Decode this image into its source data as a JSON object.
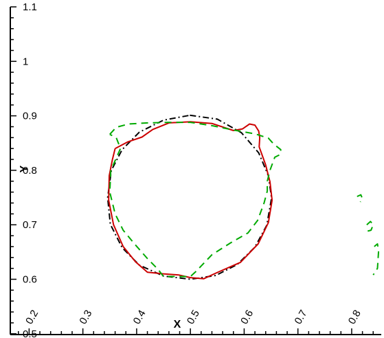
{
  "chart_data": {
    "type": "line",
    "xlabel": "X",
    "ylabel": "Y",
    "xlim": [
      0.165,
      0.855
    ],
    "ylim": [
      0.4985,
      1.1
    ],
    "grid": false,
    "legend": "none",
    "x_ticks": [
      "0.2",
      "0.3",
      "0.4",
      "0.5",
      "0.6",
      "0.7",
      "0.8"
    ],
    "y_ticks": [
      "0.5",
      "0.6",
      "0.7",
      "0.8",
      "0.9",
      "1",
      "1.1"
    ],
    "series": [
      {
        "style": "dash-dot",
        "color": "#000000",
        "points": [
          [
            0.499,
            0.901
          ],
          [
            0.55,
            0.894
          ],
          [
            0.595,
            0.869
          ],
          [
            0.627,
            0.832
          ],
          [
            0.645,
            0.79
          ],
          [
            0.651,
            0.749
          ],
          [
            0.642,
            0.699
          ],
          [
            0.62,
            0.659
          ],
          [
            0.587,
            0.627
          ],
          [
            0.547,
            0.607
          ],
          [
            0.5,
            0.6
          ],
          [
            0.45,
            0.606
          ],
          [
            0.405,
            0.626
          ],
          [
            0.373,
            0.658
          ],
          [
            0.351,
            0.701
          ],
          [
            0.346,
            0.75
          ],
          [
            0.353,
            0.8
          ],
          [
            0.373,
            0.838
          ],
          [
            0.405,
            0.87
          ],
          [
            0.45,
            0.892
          ],
          [
            0.499,
            0.901
          ]
        ]
      },
      {
        "style": "solid",
        "color": "#cc0000",
        "points": [
          [
            0.36,
            0.84
          ],
          [
            0.383,
            0.852
          ],
          [
            0.41,
            0.861
          ],
          [
            0.43,
            0.875
          ],
          [
            0.46,
            0.887
          ],
          [
            0.5,
            0.889
          ],
          [
            0.54,
            0.886
          ],
          [
            0.58,
            0.873
          ],
          [
            0.597,
            0.876
          ],
          [
            0.61,
            0.885
          ],
          [
            0.62,
            0.883
          ],
          [
            0.627,
            0.872
          ],
          [
            0.629,
            0.86
          ],
          [
            0.628,
            0.843
          ],
          [
            0.64,
            0.81
          ],
          [
            0.648,
            0.779
          ],
          [
            0.652,
            0.745
          ],
          [
            0.645,
            0.704
          ],
          [
            0.626,
            0.665
          ],
          [
            0.593,
            0.631
          ],
          [
            0.549,
            0.612
          ],
          [
            0.525,
            0.601
          ],
          [
            0.5,
            0.603
          ],
          [
            0.478,
            0.608
          ],
          [
            0.45,
            0.61
          ],
          [
            0.42,
            0.613
          ],
          [
            0.398,
            0.632
          ],
          [
            0.375,
            0.66
          ],
          [
            0.357,
            0.7
          ],
          [
            0.348,
            0.745
          ],
          [
            0.349,
            0.79
          ],
          [
            0.355,
            0.82
          ],
          [
            0.36,
            0.84
          ]
        ]
      },
      {
        "style": "dash",
        "color": "#00aa00",
        "points": [
          [
            0.35,
            0.866
          ],
          [
            0.362,
            0.879
          ],
          [
            0.385,
            0.885
          ],
          [
            0.42,
            0.887
          ],
          [
            0.46,
            0.888
          ],
          [
            0.5,
            0.888
          ],
          [
            0.54,
            0.882
          ],
          [
            0.58,
            0.874
          ],
          [
            0.62,
            0.867
          ],
          [
            0.645,
            0.859
          ],
          [
            0.655,
            0.848
          ],
          [
            0.668,
            0.838
          ],
          [
            0.667,
            0.829
          ],
          [
            0.657,
            0.824
          ],
          [
            0.648,
            0.8
          ],
          [
            0.643,
            0.78
          ],
          [
            0.643,
            0.762
          ],
          [
            0.637,
            0.74
          ],
          [
            0.625,
            0.708
          ],
          [
            0.607,
            0.685
          ],
          [
            0.575,
            0.667
          ],
          [
            0.54,
            0.645
          ],
          [
            0.51,
            0.614
          ],
          [
            0.5,
            0.605
          ],
          [
            0.45,
            0.605
          ],
          [
            0.44,
            0.618
          ],
          [
            0.42,
            0.638
          ],
          [
            0.396,
            0.665
          ],
          [
            0.375,
            0.69
          ],
          [
            0.36,
            0.72
          ],
          [
            0.35,
            0.76
          ],
          [
            0.352,
            0.8
          ],
          [
            0.37,
            0.84
          ],
          [
            0.362,
            0.86
          ],
          [
            0.35,
            0.866
          ]
        ]
      },
      {
        "style": "dash",
        "color": "#00aa00",
        "points": [
          [
            0.81,
            0.752
          ],
          [
            0.817,
            0.755
          ],
          [
            0.82,
            0.748
          ],
          [
            0.816,
            0.742
          ]
        ]
      },
      {
        "style": "dash",
        "color": "#00aa00",
        "points": [
          [
            0.828,
            0.7
          ],
          [
            0.835,
            0.706
          ],
          [
            0.84,
            0.7
          ],
          [
            0.836,
            0.69
          ],
          [
            0.828,
            0.688
          ]
        ]
      },
      {
        "style": "dash",
        "color": "#00aa00",
        "points": [
          [
            0.842,
            0.66
          ],
          [
            0.848,
            0.665
          ],
          [
            0.85,
            0.652
          ],
          [
            0.848,
            0.62
          ],
          [
            0.84,
            0.608
          ]
        ]
      }
    ]
  }
}
